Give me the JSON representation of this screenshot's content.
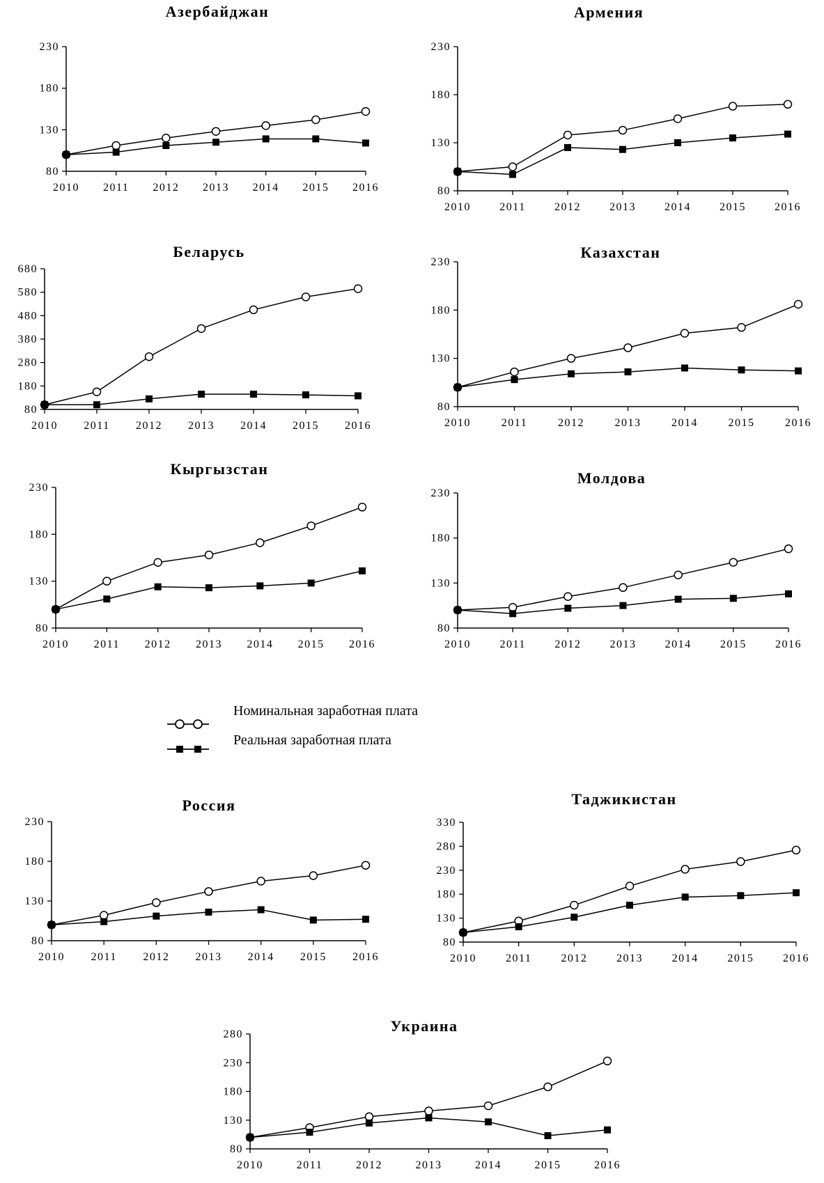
{
  "legend": {
    "nominal": "Номинальная заработная плата",
    "real": "Реальная заработная плата"
  },
  "chart_data": [
    {
      "type": "line",
      "title": "Азербайджан",
      "x": [
        "2010",
        "2011",
        "2012",
        "2013",
        "2014",
        "2015",
        "2016"
      ],
      "ylim": [
        80,
        230
      ],
      "yticks": [
        80,
        130,
        180,
        230
      ],
      "series": [
        {
          "name": "Номинальная заработная плата",
          "marker": "circle",
          "values": [
            100,
            111,
            120,
            128,
            135,
            142,
            152
          ]
        },
        {
          "name": "Реальная заработная плата",
          "marker": "square",
          "values": [
            100,
            103,
            111,
            115,
            119,
            119,
            114
          ]
        }
      ]
    },
    {
      "type": "line",
      "title": "Армения",
      "x": [
        "2010",
        "2011",
        "2012",
        "2013",
        "2014",
        "2015",
        "2016"
      ],
      "ylim": [
        80,
        230
      ],
      "yticks": [
        80,
        130,
        180,
        230
      ],
      "series": [
        {
          "name": "Номинальная заработная плата",
          "marker": "circle",
          "values": [
            100,
            105,
            138,
            143,
            155,
            168,
            170
          ]
        },
        {
          "name": "Реальная заработная плата",
          "marker": "square",
          "values": [
            100,
            97,
            125,
            123,
            130,
            135,
            139
          ]
        }
      ]
    },
    {
      "type": "line",
      "title": "Беларусь",
      "x": [
        "2010",
        "2011",
        "2012",
        "2013",
        "2014",
        "2015",
        "2016"
      ],
      "ylim": [
        80,
        680
      ],
      "yticks": [
        80,
        180,
        280,
        380,
        480,
        580,
        680
      ],
      "series": [
        {
          "name": "Номинальная заработная плата",
          "marker": "circle",
          "values": [
            100,
            155,
            305,
            425,
            505,
            560,
            595
          ]
        },
        {
          "name": "Реальная заработная плата",
          "marker": "square",
          "values": [
            100,
            100,
            125,
            145,
            145,
            142,
            138
          ]
        }
      ]
    },
    {
      "type": "line",
      "title": "Казахстан",
      "x": [
        "2010",
        "2011",
        "2012",
        "2013",
        "2014",
        "2015",
        "2016"
      ],
      "ylim": [
        80,
        230
      ],
      "yticks": [
        80,
        130,
        180,
        230
      ],
      "series": [
        {
          "name": "Номинальная заработная плата",
          "marker": "circle",
          "values": [
            100,
            116,
            130,
            141,
            156,
            162,
            186
          ]
        },
        {
          "name": "Реальная заработная плата",
          "marker": "square",
          "values": [
            100,
            108,
            114,
            116,
            120,
            118,
            117
          ]
        }
      ]
    },
    {
      "type": "line",
      "title": "Кыргызстан",
      "x": [
        "2010",
        "2011",
        "2012",
        "2013",
        "2014",
        "2015",
        "2016"
      ],
      "ylim": [
        80,
        230
      ],
      "yticks": [
        80,
        130,
        180,
        230
      ],
      "series": [
        {
          "name": "Номинальная заработная плата",
          "marker": "circle",
          "values": [
            100,
            130,
            150,
            158,
            171,
            189,
            209
          ]
        },
        {
          "name": "Реальная заработная плата",
          "marker": "square",
          "values": [
            100,
            111,
            124,
            123,
            125,
            128,
            141
          ]
        }
      ]
    },
    {
      "type": "line",
      "title": "Молдова",
      "x": [
        "2010",
        "2011",
        "2012",
        "2013",
        "2014",
        "2015",
        "2016"
      ],
      "ylim": [
        80,
        230
      ],
      "yticks": [
        80,
        130,
        180,
        230
      ],
      "series": [
        {
          "name": "Номинальная заработная плата",
          "marker": "circle",
          "values": [
            100,
            103,
            115,
            125,
            139,
            153,
            168
          ]
        },
        {
          "name": "Реальная заработная плата",
          "marker": "square",
          "values": [
            100,
            96,
            102,
            105,
            112,
            113,
            118
          ]
        }
      ]
    },
    {
      "type": "line",
      "title": "Россия",
      "x": [
        "2010",
        "2011",
        "2012",
        "2013",
        "2014",
        "2015",
        "2016"
      ],
      "ylim": [
        80,
        230
      ],
      "yticks": [
        80,
        130,
        180,
        230
      ],
      "series": [
        {
          "name": "Номинальная заработная плата",
          "marker": "circle",
          "values": [
            100,
            112,
            128,
            142,
            155,
            162,
            175
          ]
        },
        {
          "name": "Реальная заработная плата",
          "marker": "square",
          "values": [
            100,
            104,
            111,
            116,
            119,
            106,
            107
          ]
        }
      ]
    },
    {
      "type": "line",
      "title": "Таджикистан",
      "x": [
        "2010",
        "2011",
        "2012",
        "2013",
        "2014",
        "2015",
        "2016"
      ],
      "ylim": [
        80,
        330
      ],
      "yticks": [
        80,
        130,
        180,
        230,
        280,
        330
      ],
      "series": [
        {
          "name": "Номинальная заработная плата",
          "marker": "circle",
          "values": [
            100,
            124,
            157,
            197,
            232,
            248,
            272
          ]
        },
        {
          "name": "Реальная заработная плата",
          "marker": "square",
          "values": [
            100,
            112,
            132,
            157,
            174,
            177,
            183
          ]
        }
      ]
    },
    {
      "type": "line",
      "title": "Украина",
      "x": [
        "2010",
        "2011",
        "2012",
        "2013",
        "2014",
        "2015",
        "2016"
      ],
      "ylim": [
        80,
        280
      ],
      "yticks": [
        80,
        130,
        180,
        230,
        280
      ],
      "series": [
        {
          "name": "Номинальная заработная плата",
          "marker": "circle",
          "values": [
            100,
            117,
            136,
            146,
            155,
            188,
            233
          ]
        },
        {
          "name": "Реальная заработная плата",
          "marker": "square",
          "values": [
            100,
            109,
            125,
            134,
            127,
            103,
            113
          ]
        }
      ]
    }
  ]
}
